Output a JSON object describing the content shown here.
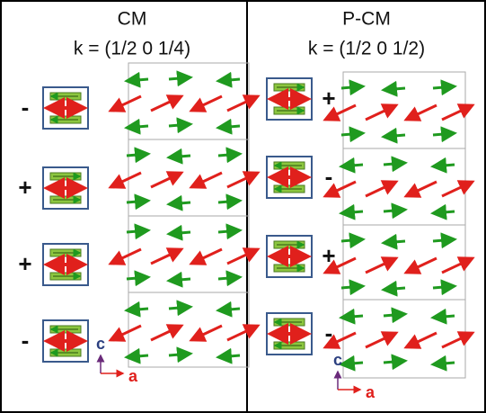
{
  "panels": [
    {
      "title": "CM",
      "k": "k = (1/2 0 1/4)",
      "signs": [
        "-",
        "+",
        "+",
        "-"
      ],
      "axes": {
        "c": "c",
        "a": "a"
      }
    },
    {
      "title": "P-CM",
      "k": "k = (1/2 0 1/2)",
      "signs": [
        "+",
        "-",
        "+",
        "-"
      ],
      "axes": {
        "c": "c",
        "a": "a"
      }
    }
  ]
}
